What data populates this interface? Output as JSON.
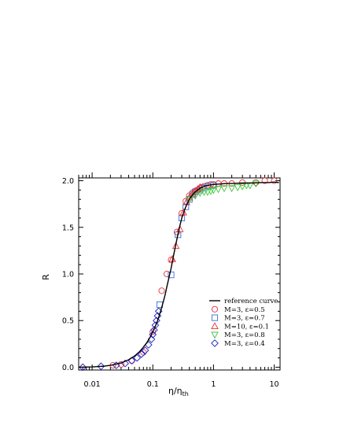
{
  "chart_data": {
    "type": "scatter",
    "title": "",
    "xlabel": "η/η",
    "xlabel_sub": "th",
    "ylabel": "R",
    "xscale": "log",
    "xlim": [
      0.006,
      12.5
    ],
    "ylim": [
      -0.03,
      2.03
    ],
    "x_ticks": [
      0.01,
      0.1,
      1,
      10
    ],
    "x_tick_labels": [
      "0.01",
      "0.1",
      "1",
      "10"
    ],
    "y_ticks": [
      0.0,
      0.5,
      1.0,
      1.5,
      2.0
    ],
    "y_tick_labels": [
      "0.0",
      "0.5",
      "1.0",
      "1.5",
      "2.0"
    ],
    "grid": false,
    "legend_position": "lower-right",
    "reference": {
      "name": "reference curve",
      "color": "#000000",
      "x": [
        0.006,
        0.01,
        0.015,
        0.02,
        0.03,
        0.04,
        0.05,
        0.06,
        0.07,
        0.08,
        0.09,
        0.1,
        0.11,
        0.12,
        0.13,
        0.14,
        0.15,
        0.16,
        0.17,
        0.18,
        0.2,
        0.22,
        0.24,
        0.26,
        0.28,
        0.3,
        0.33,
        0.36,
        0.4,
        0.45,
        0.5,
        0.6,
        0.7,
        0.8,
        1.0,
        1.3,
        1.6,
        2.0,
        3.0,
        4.0,
        6.0,
        8.0,
        10.0,
        12.0
      ],
      "y": [
        0.0,
        0.003,
        0.01,
        0.02,
        0.045,
        0.08,
        0.12,
        0.165,
        0.215,
        0.265,
        0.32,
        0.38,
        0.44,
        0.5,
        0.57,
        0.64,
        0.71,
        0.78,
        0.86,
        0.93,
        1.06,
        1.2,
        1.32,
        1.43,
        1.52,
        1.6,
        1.68,
        1.74,
        1.8,
        1.85,
        1.88,
        1.92,
        1.94,
        1.95,
        1.96,
        1.965,
        1.97,
        1.97,
        1.975,
        1.975,
        1.98,
        1.98,
        1.985,
        1.98
      ]
    },
    "series": [
      {
        "name": "M=3, ε=0.5",
        "marker": "circle",
        "color": "#e8323c",
        "x": [
          0.022,
          0.03,
          0.045,
          0.07,
          0.1,
          0.14,
          0.17,
          0.2,
          0.25,
          0.3,
          0.35,
          0.4,
          0.45,
          0.5,
          0.55,
          0.6,
          0.65,
          0.7,
          0.8,
          0.9,
          1.0,
          1.2,
          1.5,
          2.0,
          3.0,
          5.0,
          7.0,
          10.0
        ],
        "y": [
          0.02,
          0.03,
          0.07,
          0.16,
          0.38,
          0.82,
          1.0,
          1.15,
          1.45,
          1.65,
          1.78,
          1.84,
          1.87,
          1.89,
          1.9,
          1.92,
          1.93,
          1.94,
          1.95,
          1.96,
          1.96,
          1.97,
          1.97,
          1.97,
          1.98,
          1.98,
          2.0,
          2.0
        ]
      },
      {
        "name": "M=3, ε=0.7",
        "marker": "square",
        "color": "#3a6fd8",
        "x": [
          0.13,
          0.2,
          0.26,
          0.3,
          0.35,
          0.4,
          0.45,
          0.5,
          0.6,
          0.7,
          0.8,
          1.0
        ],
        "y": [
          0.67,
          0.99,
          1.42,
          1.6,
          1.72,
          1.8,
          1.85,
          1.88,
          1.9,
          1.92,
          1.94,
          1.95
        ]
      },
      {
        "name": "M=10, ε=0.1",
        "marker": "triangle-up",
        "color": "#e8323c",
        "x": [
          0.21,
          0.24,
          0.28,
          0.32,
          0.36,
          0.4,
          0.45,
          0.5,
          0.55,
          0.6
        ],
        "y": [
          1.16,
          1.3,
          1.48,
          1.66,
          1.77,
          1.82,
          1.86,
          1.89,
          1.91,
          1.93
        ]
      },
      {
        "name": "M=3, ε=0.8",
        "marker": "triangle-down",
        "color": "#3cc83c",
        "x": [
          0.4,
          0.5,
          0.6,
          0.7,
          0.8,
          0.9,
          1.0,
          1.2,
          1.5,
          2.0,
          2.5,
          3.0,
          3.5,
          4.0,
          5.0
        ],
        "y": [
          1.8,
          1.84,
          1.87,
          1.88,
          1.88,
          1.89,
          1.9,
          1.91,
          1.92,
          1.92,
          1.93,
          1.94,
          1.95,
          1.95,
          1.97
        ]
      },
      {
        "name": "M=3, ε=0.4",
        "marker": "diamond",
        "color": "#2020c0",
        "x": [
          0.007,
          0.014,
          0.025,
          0.035,
          0.045,
          0.055,
          0.065,
          0.075,
          0.085,
          0.095,
          0.1,
          0.105,
          0.11,
          0.115,
          0.12,
          0.125
        ],
        "y": [
          0.0,
          0.01,
          0.02,
          0.04,
          0.07,
          0.1,
          0.14,
          0.18,
          0.24,
          0.3,
          0.35,
          0.4,
          0.45,
          0.5,
          0.55,
          0.6
        ]
      }
    ]
  }
}
